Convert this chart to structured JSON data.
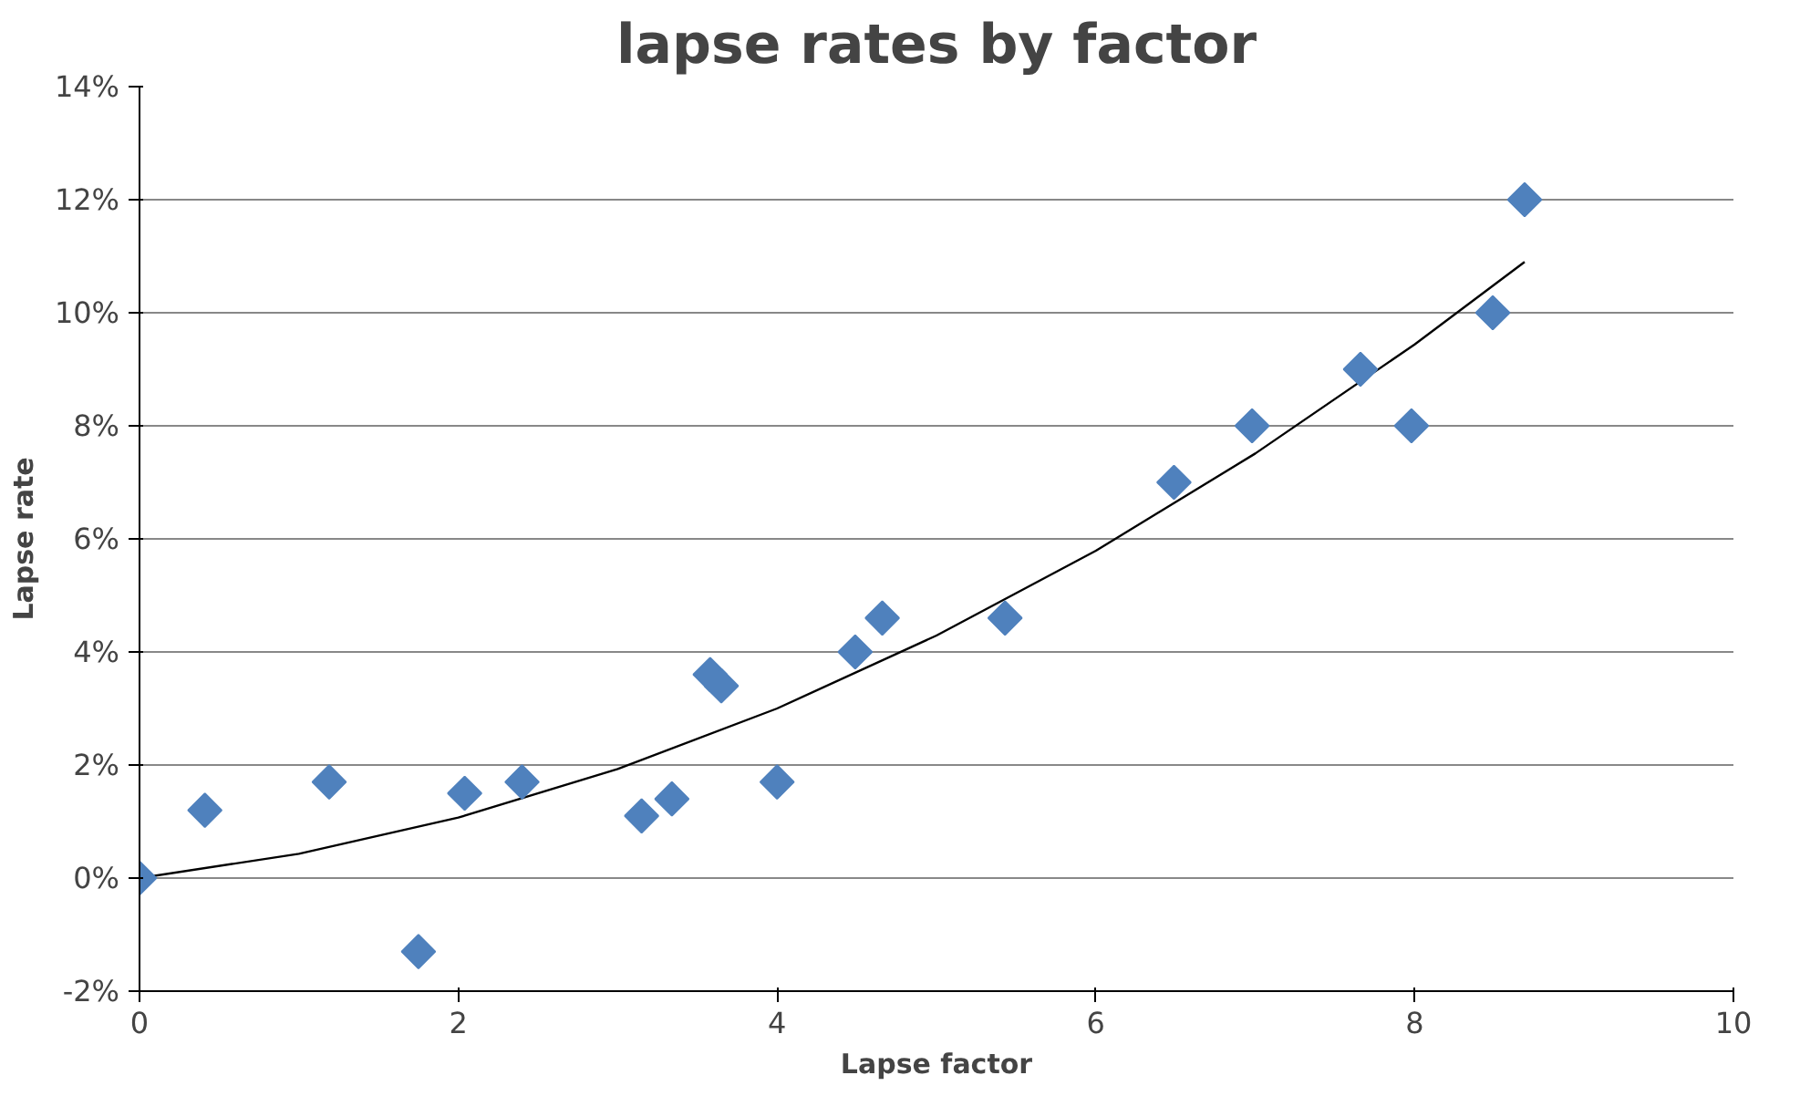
{
  "chart_data": {
    "type": "scatter",
    "title": "lapse rates by factor",
    "xlabel": "Lapse factor",
    "ylabel": "Lapse rate",
    "xlim": [
      0,
      10
    ],
    "xticks": [
      0,
      2,
      4,
      6,
      8,
      10
    ],
    "ylim": [
      -2,
      14
    ],
    "yticks": [
      {
        "value": -2,
        "label": "-2%"
      },
      {
        "value": 0,
        "label": "0%"
      },
      {
        "value": 2,
        "label": "2%"
      },
      {
        "value": 4,
        "label": "4%"
      },
      {
        "value": 6,
        "label": "6%"
      },
      {
        "value": 8,
        "label": "8%"
      },
      {
        "value": 10,
        "label": "10%"
      },
      {
        "value": 12,
        "label": "12%"
      },
      {
        "value": 14,
        "label": "14%"
      }
    ],
    "grid": "y",
    "marker": "diamond",
    "series": [
      {
        "color": "#4f81bd",
        "x": [
          0,
          0.41,
          1.19,
          1.75,
          2.04,
          2.4,
          3.15,
          3.34,
          3.58,
          3.65,
          4.0,
          4.49,
          4.66,
          5.43,
          6.49,
          6.98,
          7.66,
          7.98,
          8.49,
          8.69
        ],
        "values": [
          0,
          1.2,
          1.7,
          -1.3,
          1.5,
          1.7,
          1.1,
          1.4,
          3.6,
          3.4,
          1.7,
          4.0,
          4.6,
          4.6,
          7.0,
          8.0,
          9.0,
          8.0,
          10.0,
          12.0
        ]
      },
      {
        "type": "line",
        "color": "#000000",
        "line_style": "solid",
        "marker": "none",
        "x": [
          0,
          1,
          2,
          3,
          4,
          5,
          6,
          7,
          8,
          8.69
        ],
        "values": [
          0,
          0.43,
          1.07,
          1.93,
          3.0,
          4.29,
          5.79,
          7.51,
          9.44,
          10.9
        ]
      }
    ]
  }
}
